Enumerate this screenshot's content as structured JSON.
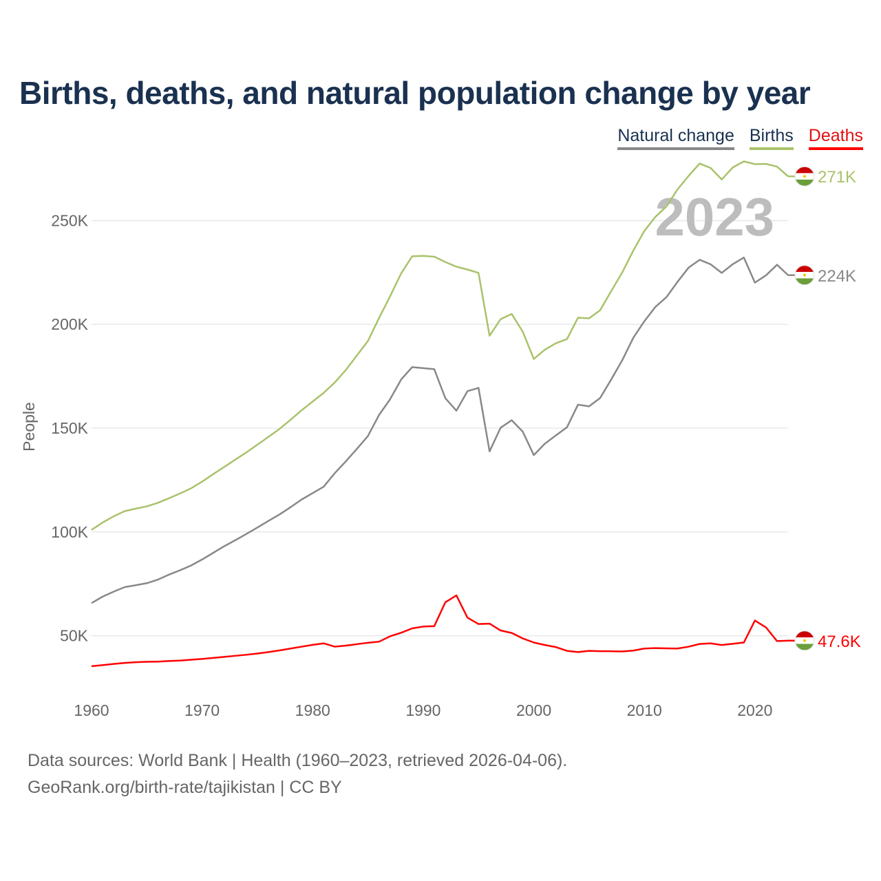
{
  "title": "Births, deaths, and natural population change by year",
  "legend": [
    {
      "label": "Natural change",
      "color": "#888888",
      "text_color": "#1a3150"
    },
    {
      "label": "Births",
      "color": "#a9c26a",
      "text_color": "#1a3150"
    },
    {
      "label": "Deaths",
      "color": "#ff0000",
      "text_color": "#e01010"
    }
  ],
  "source": {
    "line1": "Data sources: World Bank | Health (1960–2023, retrieved 2026-04-06).",
    "line2": "GeoRank.org/birth-rate/tajikistan | CC BY"
  },
  "chart_data": {
    "type": "line",
    "title": "Births, deaths, and natural population change by year",
    "ylabel": "People",
    "xlabel": "",
    "year_label": "2023",
    "xlim": [
      1960,
      2023
    ],
    "ylim": [
      22000,
      280000
    ],
    "x_ticks": [
      1960,
      1970,
      1980,
      1990,
      2000,
      2010,
      2020
    ],
    "y_ticks": [
      {
        "value": 50000,
        "label": "50K"
      },
      {
        "value": 100000,
        "label": "100K"
      },
      {
        "value": 150000,
        "label": "150K"
      },
      {
        "value": 200000,
        "label": "200K"
      },
      {
        "value": 250000,
        "label": "250K"
      }
    ],
    "x": [
      1960,
      1961,
      1962,
      1963,
      1964,
      1965,
      1966,
      1967,
      1968,
      1969,
      1970,
      1971,
      1972,
      1973,
      1974,
      1975,
      1976,
      1977,
      1978,
      1979,
      1980,
      1981,
      1982,
      1983,
      1984,
      1985,
      1986,
      1987,
      1988,
      1989,
      1990,
      1991,
      1992,
      1993,
      1994,
      1995,
      1996,
      1997,
      1998,
      1999,
      2000,
      2001,
      2002,
      2003,
      2004,
      2005,
      2006,
      2007,
      2008,
      2009,
      2010,
      2011,
      2012,
      2013,
      2014,
      2015,
      2016,
      2017,
      2018,
      2019,
      2020,
      2021,
      2022,
      2023
    ],
    "series": [
      {
        "name": "Births",
        "color": "#a9c26a",
        "end_label": "271K",
        "values": [
          101000,
          104500,
          107500,
          110000,
          111200,
          112300,
          114000,
          116200,
          118500,
          121000,
          124200,
          127800,
          131300,
          134800,
          138300,
          142000,
          145800,
          149600,
          154000,
          158600,
          162800,
          167000,
          172000,
          178000,
          185000,
          192000,
          203000,
          213500,
          224500,
          232800,
          233000,
          232600,
          230000,
          227800,
          226400,
          224800,
          194500,
          202500,
          205000,
          196500,
          183300,
          187800,
          190900,
          192900,
          203200,
          202900,
          206800,
          216000,
          225000,
          235500,
          245000,
          251800,
          256800,
          265000,
          271500,
          277500,
          275300,
          269800,
          275600,
          278500,
          277200,
          277300,
          276000,
          271300
        ]
      },
      {
        "name": "Natural change",
        "color": "#888888",
        "end_label": "224K",
        "values": [
          65700,
          68800,
          71200,
          73400,
          74300,
          75300,
          77000,
          79400,
          81500,
          83800,
          86700,
          89900,
          93100,
          96000,
          99000,
          102100,
          105300,
          108400,
          111900,
          115600,
          118700,
          121800,
          128300,
          134000,
          140000,
          146200,
          156300,
          163900,
          173400,
          179400,
          178900,
          178400,
          164400,
          158400,
          167800,
          169400,
          138800,
          150200,
          153800,
          148300,
          137000,
          142500,
          146500,
          150400,
          161300,
          160500,
          164500,
          173400,
          182700,
          193500,
          201500,
          208400,
          213100,
          220500,
          227300,
          231100,
          228900,
          224800,
          229000,
          232200,
          220100,
          223600,
          228700,
          223700
        ]
      },
      {
        "name": "Deaths",
        "color": "#ff0000",
        "end_label": "47.6K",
        "values": [
          35300,
          35800,
          36400,
          36900,
          37200,
          37400,
          37500,
          37800,
          38000,
          38400,
          38800,
          39300,
          39800,
          40300,
          40800,
          41400,
          42100,
          42900,
          43800,
          44700,
          45600,
          46300,
          44700,
          45200,
          45900,
          46600,
          47100,
          49700,
          51400,
          53500,
          54400,
          54600,
          66100,
          69400,
          58700,
          55600,
          55800,
          52500,
          51300,
          48700,
          46700,
          45500,
          44500,
          42700,
          42100,
          42700,
          42500,
          42500,
          42400,
          42800,
          43800,
          44000,
          43900,
          43800,
          44700,
          46000,
          46300,
          45500,
          46100,
          46700,
          57300,
          54000,
          47400,
          47600
        ]
      }
    ]
  }
}
